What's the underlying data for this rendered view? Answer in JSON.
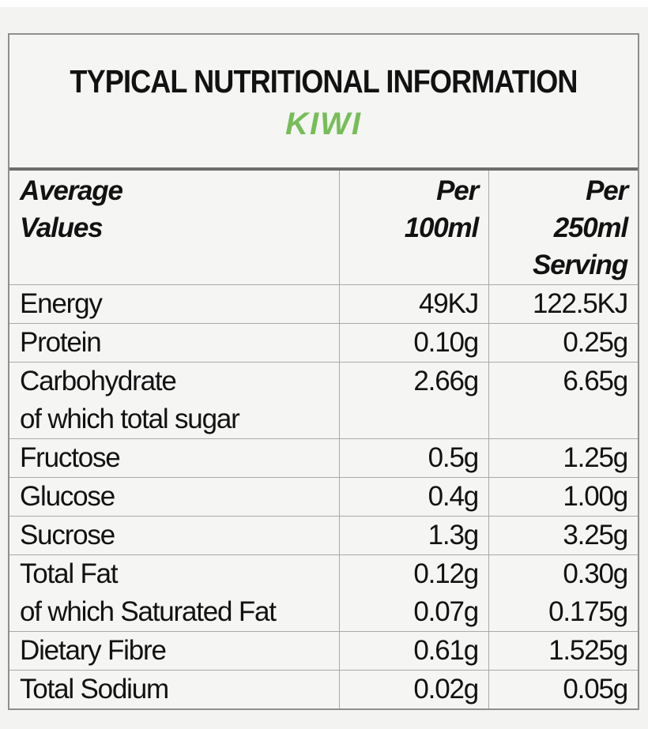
{
  "title": "TYPICAL NUTRITIONAL INFORMATION",
  "subtitle": "KIWI",
  "colors": {
    "subtitle_green": "#77bd58",
    "text": "#121212",
    "border_thin": "#a9a9a9",
    "border_thick": "#6d6d6d",
    "background": "#f5f5f4"
  },
  "table": {
    "header": {
      "col1_lines": [
        "Average",
        "Values"
      ],
      "col2_lines": [
        "Per",
        "100ml"
      ],
      "col3_lines": [
        "Per",
        "250ml",
        "Serving"
      ]
    },
    "rows": [
      {
        "label_lines": [
          "Energy"
        ],
        "per100_lines": [
          "49KJ"
        ],
        "per250_lines": [
          "122.5KJ"
        ]
      },
      {
        "label_lines": [
          "Protein"
        ],
        "per100_lines": [
          "0.10g"
        ],
        "per250_lines": [
          "0.25g"
        ]
      },
      {
        "label_lines": [
          "Carbohydrate",
          "of which total sugar"
        ],
        "per100_lines": [
          "2.66g"
        ],
        "per250_lines": [
          "6.65g"
        ]
      },
      {
        "label_lines": [
          "Fructose"
        ],
        "per100_lines": [
          "0.5g"
        ],
        "per250_lines": [
          "1.25g"
        ]
      },
      {
        "label_lines": [
          "Glucose"
        ],
        "per100_lines": [
          "0.4g"
        ],
        "per250_lines": [
          "1.00g"
        ]
      },
      {
        "label_lines": [
          "Sucrose"
        ],
        "per100_lines": [
          "1.3g"
        ],
        "per250_lines": [
          "3.25g"
        ]
      },
      {
        "label_lines": [
          "Total Fat",
          "of which Saturated Fat"
        ],
        "per100_lines": [
          "0.12g",
          "0.07g"
        ],
        "per250_lines": [
          "0.30g",
          "0.175g"
        ]
      },
      {
        "label_lines": [
          "Dietary Fibre"
        ],
        "per100_lines": [
          "0.61g"
        ],
        "per250_lines": [
          "1.525g"
        ]
      },
      {
        "label_lines": [
          "Total Sodium"
        ],
        "per100_lines": [
          "0.02g"
        ],
        "per250_lines": [
          "0.05g"
        ]
      }
    ]
  }
}
